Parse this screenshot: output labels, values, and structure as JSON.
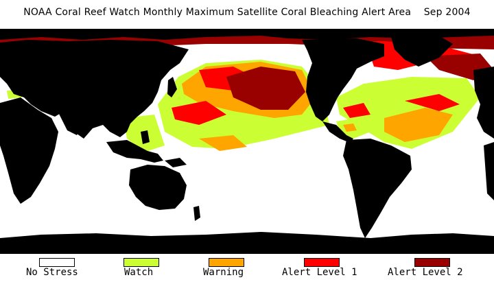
{
  "title": "NOAA Coral Reef Watch Monthly Maximum Satellite Coral Bleaching Alert Area    Sep 2004",
  "map": {
    "land_color": "#000000",
    "ocean_color": "#ffffff"
  },
  "legend": [
    {
      "label": "No Stress",
      "color": "#ffffff"
    },
    {
      "label": "Watch",
      "color": "#ccff33"
    },
    {
      "label": "Warning",
      "color": "#ffa500"
    },
    {
      "label": "Alert Level 1",
      "color": "#ff0000"
    },
    {
      "label": "Alert Level 2",
      "color": "#990000"
    }
  ]
}
